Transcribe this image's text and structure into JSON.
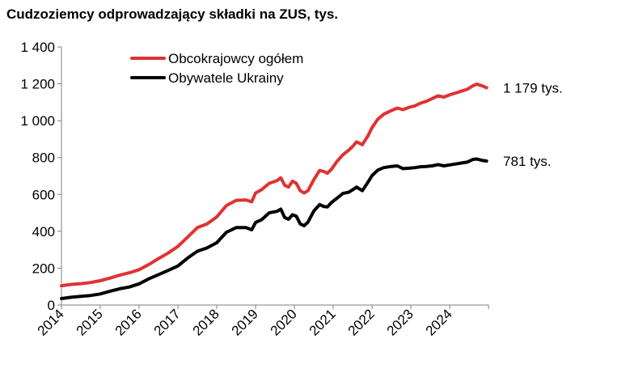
{
  "chart_data": {
    "type": "line",
    "title": "Cudzoziemcy odprowadzający składki na ZUS, tys.",
    "xlabel": "",
    "ylabel": "",
    "ylim": [
      0,
      1400
    ],
    "xlim": [
      2014,
      2025
    ],
    "y_ticks": [
      "0",
      "200",
      "400",
      "600",
      "800",
      "1 000",
      "1 200",
      "1 400"
    ],
    "y_tick_values": [
      0,
      200,
      400,
      600,
      800,
      1000,
      1200,
      1400
    ],
    "x_ticks": [
      "2014",
      "2015",
      "2016",
      "2017",
      "2018",
      "2019",
      "2020",
      "2021",
      "2022",
      "2023",
      "2024"
    ],
    "x_tick_values": [
      2014,
      2015,
      2016,
      2017,
      2018,
      2019,
      2020,
      2021,
      2022,
      2023,
      2024
    ],
    "grid": false,
    "legend_position": "top-center",
    "series": [
      {
        "name": "Obcokrajowcy ogółem",
        "color": "#e03232",
        "end_label": "1 179 tys.",
        "x": [
          2014.0,
          2014.25,
          2014.5,
          2014.75,
          2015.0,
          2015.25,
          2015.5,
          2015.75,
          2016.0,
          2016.25,
          2016.5,
          2016.75,
          2017.0,
          2017.25,
          2017.5,
          2017.75,
          2018.0,
          2018.25,
          2018.5,
          2018.75,
          2018.9,
          2019.0,
          2019.15,
          2019.35,
          2019.55,
          2019.65,
          2019.75,
          2019.85,
          2019.95,
          2020.05,
          2020.15,
          2020.25,
          2020.35,
          2020.5,
          2020.65,
          2020.75,
          2020.85,
          2020.95,
          2021.1,
          2021.25,
          2021.4,
          2021.5,
          2021.6,
          2021.75,
          2021.9,
          2022.0,
          2022.15,
          2022.3,
          2022.5,
          2022.65,
          2022.8,
          2022.95,
          2023.1,
          2023.25,
          2023.4,
          2023.55,
          2023.7,
          2023.85,
          2024.0,
          2024.15,
          2024.3,
          2024.45,
          2024.6,
          2024.7,
          2024.85,
          2024.95
        ],
        "values": [
          105,
          112,
          116,
          122,
          132,
          146,
          162,
          175,
          192,
          220,
          252,
          282,
          318,
          368,
          420,
          440,
          478,
          540,
          568,
          570,
          560,
          608,
          625,
          660,
          675,
          690,
          650,
          640,
          672,
          660,
          620,
          608,
          620,
          680,
          730,
          725,
          715,
          735,
          780,
          815,
          840,
          860,
          885,
          870,
          920,
          962,
          1008,
          1035,
          1055,
          1068,
          1060,
          1072,
          1080,
          1095,
          1105,
          1120,
          1135,
          1128,
          1140,
          1150,
          1160,
          1170,
          1190,
          1198,
          1188,
          1179
        ]
      },
      {
        "name": "Obywatele Ukrainy",
        "color": "#000000",
        "end_label": "781 tys.",
        "x": [
          2014.0,
          2014.25,
          2014.5,
          2014.75,
          2015.0,
          2015.25,
          2015.5,
          2015.75,
          2016.0,
          2016.25,
          2016.5,
          2016.75,
          2017.0,
          2017.25,
          2017.5,
          2017.75,
          2018.0,
          2018.25,
          2018.5,
          2018.75,
          2018.9,
          2019.0,
          2019.15,
          2019.35,
          2019.55,
          2019.65,
          2019.75,
          2019.85,
          2019.95,
          2020.05,
          2020.15,
          2020.25,
          2020.35,
          2020.5,
          2020.65,
          2020.75,
          2020.85,
          2020.95,
          2021.1,
          2021.25,
          2021.4,
          2021.5,
          2021.6,
          2021.75,
          2021.9,
          2022.0,
          2022.15,
          2022.3,
          2022.5,
          2022.65,
          2022.8,
          2022.95,
          2023.1,
          2023.25,
          2023.4,
          2023.55,
          2023.7,
          2023.85,
          2024.0,
          2024.15,
          2024.3,
          2024.45,
          2024.6,
          2024.7,
          2024.85,
          2024.95
        ],
        "values": [
          35,
          42,
          47,
          52,
          60,
          75,
          88,
          98,
          115,
          142,
          165,
          188,
          212,
          255,
          292,
          310,
          338,
          395,
          420,
          420,
          408,
          448,
          462,
          500,
          508,
          520,
          475,
          465,
          490,
          482,
          440,
          430,
          450,
          510,
          545,
          535,
          532,
          555,
          580,
          605,
          612,
          625,
          640,
          620,
          668,
          702,
          732,
          745,
          752,
          755,
          740,
          742,
          745,
          750,
          752,
          755,
          762,
          755,
          760,
          765,
          770,
          775,
          790,
          792,
          784,
          781
        ]
      }
    ]
  }
}
